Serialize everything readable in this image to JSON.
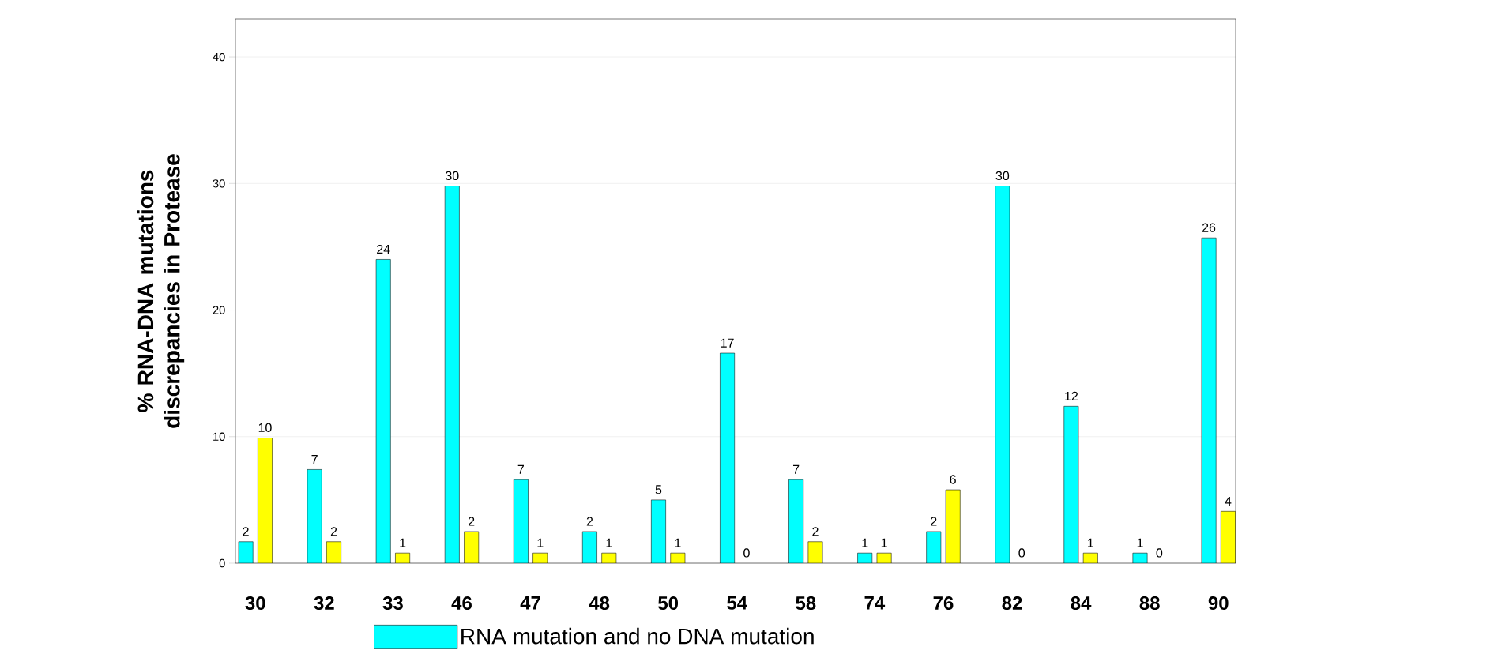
{
  "chart_data": {
    "type": "bar",
    "ylabel": "% RNA-DNA mutations discrepancies in Protease",
    "categories": [
      "30",
      "32",
      "33",
      "46",
      "47",
      "48",
      "50",
      "54",
      "58",
      "74",
      "76",
      "82",
      "84",
      "88",
      "90"
    ],
    "series": [
      {
        "name": "RNA mutation and no DNA mutation",
        "color": "#00ffff",
        "values": [
          1.7,
          7.4,
          24.0,
          29.8,
          6.6,
          2.5,
          5.0,
          16.6,
          6.6,
          0.8,
          2.5,
          29.8,
          12.4,
          0.8,
          25.7
        ],
        "value_labels": [
          "2",
          "7",
          "24",
          "30",
          "7",
          "2",
          "5",
          "17",
          "7",
          "1",
          "2",
          "30",
          "12",
          "1",
          "26"
        ]
      },
      {
        "color": "#ffff00",
        "values": [
          9.9,
          1.7,
          0.8,
          2.5,
          0.8,
          0.8,
          0.8,
          0,
          1.7,
          0.8,
          5.8,
          0,
          0.8,
          0,
          4.1
        ],
        "value_labels": [
          "10",
          "2",
          "1",
          "2",
          "1",
          "1",
          "1",
          "0",
          "2",
          "1",
          "6",
          "0",
          "1",
          "0",
          "4"
        ]
      }
    ],
    "ylim": [
      0,
      43
    ],
    "yticks": [
      0,
      10,
      20,
      30,
      40
    ],
    "grid": "y",
    "legend": "bottom"
  }
}
